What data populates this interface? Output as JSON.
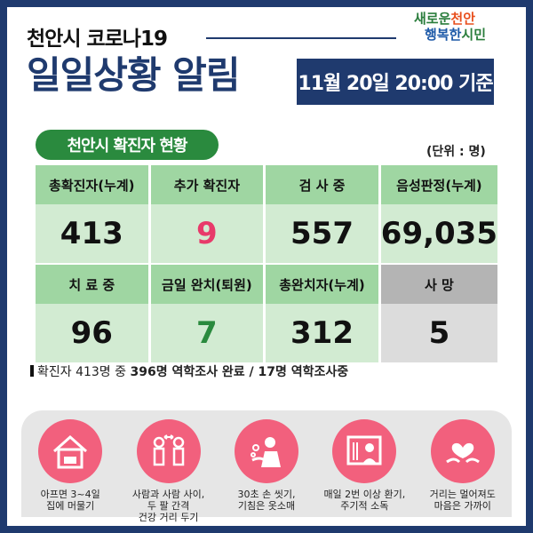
{
  "header": {
    "title_small": "천안시 코로나19",
    "title_big": "일일상황 알림",
    "date_badge": "11월 20일 20:00 기준",
    "logo_line1_a": "새로운",
    "logo_line1_b": "천안",
    "logo_line2_a": "행복한",
    "logo_line2_b": "시민"
  },
  "section": {
    "pill": "천안시 확진자 현황",
    "unit": "(단위 : 명)"
  },
  "stats_row1": [
    {
      "label": "총확진자(누계)",
      "value": "413"
    },
    {
      "label": "추가 확진자",
      "value": "9"
    },
    {
      "label": "검 사 중",
      "value": "557"
    },
    {
      "label": "음성판정(누계)",
      "value": "69,035"
    }
  ],
  "stats_row2": [
    {
      "label": "치 료 중",
      "value": "96"
    },
    {
      "label": "금일 완치(퇴원)",
      "value": "7"
    },
    {
      "label": "총완치자(누계)",
      "value": "312"
    },
    {
      "label": "사  망",
      "value": "5"
    }
  ],
  "note": {
    "prefix": "확진자 413명 중 ",
    "bold": "396명 역학조사 완료 / 17명 역학조사중"
  },
  "guidelines": [
    {
      "icon": "house-icon",
      "caption": "아프면 3~4일\n집에 머물기"
    },
    {
      "icon": "people-distance-icon",
      "caption": "사람과 사람 사이,\n두 팔 간격\n건강 거리 두기"
    },
    {
      "icon": "handwash-icon",
      "caption": "30초 손 씻기,\n기침은 옷소매"
    },
    {
      "icon": "window-icon",
      "caption": "매일 2번 이상 환기,\n주기적 소독"
    },
    {
      "icon": "heart-hands-icon",
      "caption": "거리는 멀어져도\n마음은 가까이"
    }
  ],
  "colors": {
    "navy": "#1f3a6e",
    "green": "#2a8a3e",
    "pink": "#e83a6a"
  }
}
